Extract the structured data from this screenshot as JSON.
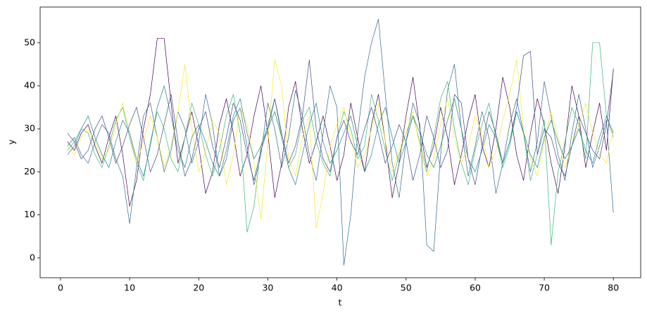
{
  "chart_data": {
    "type": "line",
    "xlabel": "t",
    "ylabel": "y",
    "xlim": [
      -2.95,
      83.95
    ],
    "ylim": [
      -4.6,
      58.3
    ],
    "xticks": [
      0,
      10,
      20,
      30,
      40,
      50,
      60,
      70,
      80
    ],
    "yticks": [
      0,
      10,
      20,
      30,
      40,
      50
    ],
    "x": [
      1,
      2,
      3,
      4,
      5,
      6,
      7,
      8,
      9,
      10,
      11,
      12,
      13,
      14,
      15,
      16,
      17,
      18,
      19,
      20,
      21,
      22,
      23,
      24,
      25,
      26,
      27,
      28,
      29,
      30,
      31,
      32,
      33,
      34,
      35,
      36,
      37,
      38,
      39,
      40,
      41,
      42,
      43,
      44,
      45,
      46,
      47,
      48,
      49,
      50,
      51,
      52,
      53,
      54,
      55,
      56,
      57,
      58,
      59,
      60,
      61,
      62,
      63,
      64,
      65,
      66,
      67,
      68,
      69,
      70,
      71,
      72,
      73,
      74,
      75,
      76,
      77,
      78,
      79,
      80
    ],
    "series": [
      {
        "color": "#440154",
        "values": [
          27,
          25,
          29,
          31,
          26,
          22,
          28,
          33,
          24,
          12,
          18,
          30,
          38,
          51,
          51,
          36,
          22,
          28,
          34,
          26,
          15,
          20,
          31,
          37,
          29,
          19,
          24,
          33,
          40,
          29,
          14,
          22,
          35,
          41,
          30,
          22,
          27,
          33,
          26,
          18,
          24,
          36,
          28,
          20,
          31,
          38,
          27,
          14,
          22,
          33,
          42,
          30,
          21,
          26,
          35,
          28,
          17,
          24,
          32,
          38,
          26,
          21,
          30,
          42,
          35,
          24,
          18,
          29,
          37,
          31,
          22,
          15,
          26,
          40,
          33,
          21,
          29,
          36,
          25,
          44
        ]
      },
      {
        "color": "#31688e",
        "values": [
          26,
          28,
          24,
          22,
          27,
          31,
          29,
          23,
          19,
          8,
          21,
          33,
          36,
          28,
          20,
          25,
          34,
          30,
          22,
          27,
          38,
          31,
          19,
          23,
          32,
          35,
          26,
          17,
          24,
          36,
          30,
          21,
          28,
          39,
          33,
          24,
          18,
          29,
          40,
          35,
          -1.7,
          10,
          29,
          42,
          50,
          55.5,
          38,
          22,
          14,
          27,
          36,
          31,
          3,
          1.5,
          24,
          39,
          45,
          30,
          19,
          26,
          34,
          28,
          15,
          22,
          31,
          37,
          29,
          20,
          27,
          41,
          33,
          24,
          18,
          29,
          38,
          30,
          21,
          26,
          32,
          10.5
        ]
      },
      {
        "color": "#35b779",
        "values": [
          25,
          27,
          30,
          29,
          24,
          21,
          26,
          32,
          35,
          28,
          22,
          18,
          27,
          34,
          30,
          23,
          20,
          28,
          36,
          31,
          24,
          19,
          25,
          33,
          38,
          29,
          6,
          12,
          26,
          31,
          37,
          28,
          21,
          24,
          32,
          35,
          27,
          22,
          19,
          28,
          34,
          30,
          23,
          26,
          38,
          32,
          25,
          18,
          24,
          29,
          33,
          27,
          20,
          28,
          37,
          41,
          30,
          22,
          17,
          25,
          31,
          36,
          28,
          21,
          26,
          34,
          29,
          18,
          24,
          32,
          3,
          20,
          27,
          35,
          31,
          23,
          50,
          50,
          33,
          28
        ]
      },
      {
        "color": "#fde725",
        "values": [
          26,
          24,
          28,
          30,
          27,
          23,
          25,
          31,
          36,
          29,
          22,
          27,
          33,
          28,
          21,
          26,
          34,
          45,
          30,
          20,
          25,
          32,
          29,
          17,
          24,
          35,
          31,
          22,
          9,
          27,
          46,
          40,
          23,
          19,
          28,
          33,
          7,
          15,
          26,
          31,
          35,
          28,
          21,
          24,
          30,
          36,
          27,
          20,
          25,
          29,
          34,
          26,
          19,
          23,
          31,
          37,
          28,
          22,
          26,
          33,
          29,
          21,
          25,
          32,
          38,
          46,
          30,
          23,
          19,
          27,
          34,
          28,
          21,
          26,
          31,
          36,
          29,
          24,
          22,
          30
        ]
      },
      {
        "color": "#3e4989",
        "values": [
          29,
          27,
          23,
          25,
          30,
          33,
          28,
          22,
          26,
          31,
          35,
          28,
          20,
          24,
          31,
          38,
          27,
          19,
          23,
          30,
          34,
          26,
          21,
          28,
          36,
          32,
          24,
          18,
          25,
          30,
          37,
          29,
          22,
          26,
          33,
          46,
          30,
          23,
          20,
          28,
          32,
          27,
          24,
          30,
          35,
          29,
          22,
          26,
          31,
          27,
          18,
          24,
          33,
          28,
          21,
          25,
          38,
          36,
          23,
          17,
          26,
          34,
          29,
          22,
          27,
          35,
          47,
          48,
          24,
          30,
          28,
          22,
          19,
          26,
          33,
          29,
          25,
          23,
          31,
          43.5
        ]
      },
      {
        "color": "#26828e",
        "values": [
          24,
          26,
          30,
          33,
          28,
          24,
          21,
          27,
          32,
          29,
          23,
          19,
          26,
          35,
          40,
          33,
          25,
          21,
          28,
          31,
          27,
          22,
          19,
          25,
          33,
          37,
          29,
          23,
          26,
          30,
          34,
          28,
          21,
          17,
          24,
          31,
          36,
          27,
          22,
          25,
          29,
          33,
          26,
          20,
          24,
          31,
          35,
          28,
          22,
          27,
          33,
          29,
          24,
          21,
          26,
          32,
          37,
          30,
          23,
          20,
          25,
          31,
          28,
          22,
          27,
          34,
          29,
          24,
          21,
          28,
          32,
          27,
          23,
          26,
          30,
          25,
          22,
          28,
          33,
          29
        ]
      }
    ]
  }
}
